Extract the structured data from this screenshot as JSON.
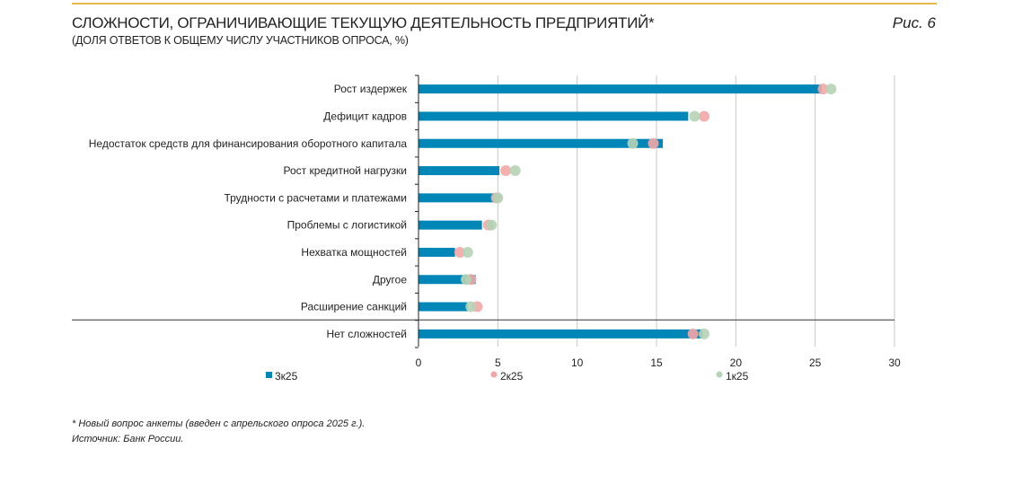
{
  "header": {
    "title": "СЛОЖНОСТИ, ОГРАНИЧИВАЮЩИЕ ТЕКУЩУЮ ДЕЯТЕЛЬНОСТЬ ПРЕДПРИЯТИЙ*",
    "subtitle": "(ДОЛЯ ОТВЕТОВ К ОБЩЕМУ ЧИСЛУ УЧАСТНИКОВ ОПРОСА, %)",
    "figure_label": "Рис. 6"
  },
  "footnotes": {
    "note": "* Новый вопрос анкеты (введен с апрельского опроса 2025 г.).",
    "source": "Источник: Банк России."
  },
  "colors": {
    "bar": "#0087b8",
    "q2": "#f4a6a6",
    "q1": "#b5d3b5",
    "grid": "#c8c8c8",
    "accent_line": "#e8b84a"
  },
  "chart_data": {
    "type": "bar",
    "orientation": "horizontal",
    "title": "СЛОЖНОСТИ, ОГРАНИЧИВАЮЩИЕ ТЕКУЩУЮ ДЕЯТЕЛЬНОСТЬ ПРЕДПРИЯТИЙ*",
    "subtitle": "(ДОЛЯ ОТВЕТОВ К ОБЩЕМУ ЧИСЛУ УЧАСТНИКОВ ОПРОСА, %)",
    "xlabel": "",
    "ylabel": "",
    "xlim": [
      0,
      30
    ],
    "xticks": [
      0,
      5,
      10,
      15,
      20,
      25,
      30
    ],
    "grid": true,
    "legend_position": "bottom",
    "categories": [
      "Рост издержек",
      "Дефицит кадров",
      "Недостаток средств для финансирования оборотного капитала",
      "Рост кредитной нагрузки",
      "Трудности с расчетами и платежами",
      "Проблемы с логистикой",
      "Нехватка мощностей",
      "Другое",
      "Расширение санкций",
      "Нет сложностей"
    ],
    "separator_before_index": 9,
    "series": [
      {
        "name": "3к25",
        "kind": "bar",
        "values": [
          25.4,
          17.0,
          15.4,
          5.1,
          4.8,
          4.0,
          2.3,
          3.6,
          3.1,
          17.9
        ]
      },
      {
        "name": "2к25",
        "kind": "dot",
        "values": [
          25.5,
          18.0,
          14.8,
          5.5,
          4.9,
          4.4,
          2.6,
          3.3,
          3.7,
          17.3
        ]
      },
      {
        "name": "1к25",
        "kind": "dot",
        "values": [
          26.0,
          17.4,
          13.5,
          6.1,
          5.0,
          4.6,
          3.1,
          3.0,
          3.3,
          18.0
        ]
      }
    ]
  }
}
